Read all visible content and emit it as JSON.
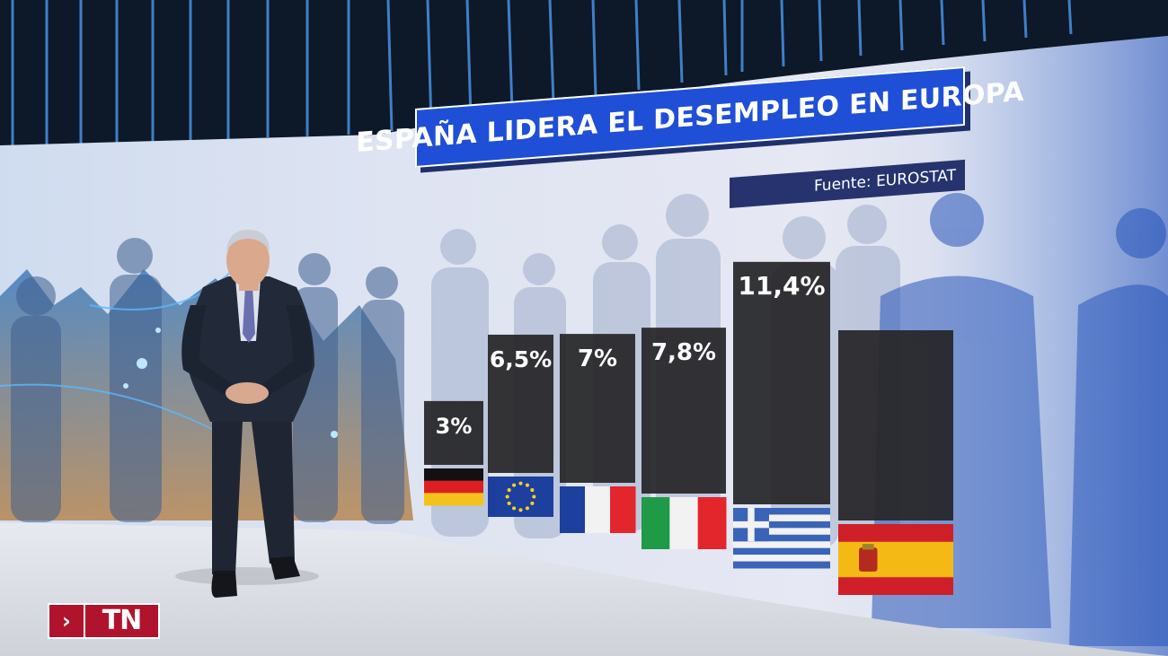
{
  "chart_data": {
    "type": "bar",
    "title": "ESPAÑA LIDERA EL DESEMPLEO EN EUROPA",
    "source": "Fuente: EUROSTAT",
    "categories": [
      "Alemania",
      "Unión Europea",
      "Francia",
      "Italia",
      "Grecia",
      "España"
    ],
    "values": [
      3,
      6.5,
      7,
      7.8,
      11.4,
      null
    ],
    "data_labels": [
      "3%",
      "6,5%",
      "7%",
      "7,8%",
      "11,4%",
      ""
    ],
    "ylim": [
      0,
      12
    ],
    "grid": false,
    "legend": "none"
  },
  "brand": {
    "logo_text": "TN",
    "logo_arrow": "›"
  },
  "colors": {
    "title_bg": "#1f4fd6",
    "source_bg": "#26336e",
    "bar": "#262628",
    "logo_bg": "#b0142c"
  }
}
